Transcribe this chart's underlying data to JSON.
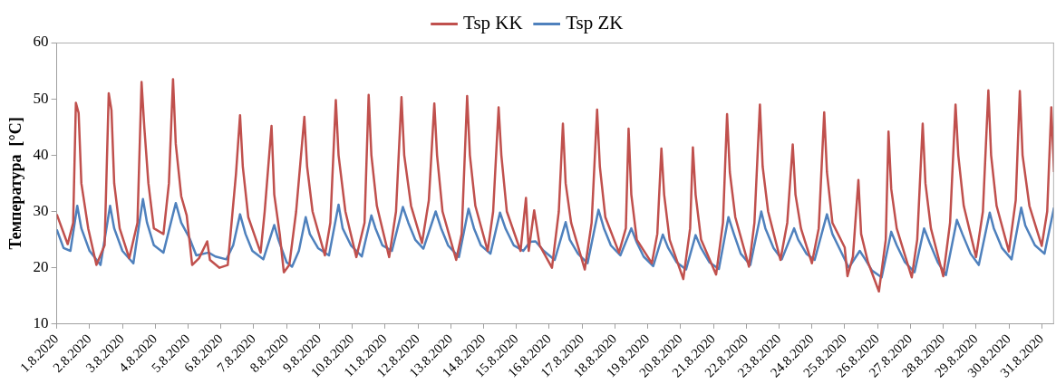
{
  "chart_data": {
    "type": "line",
    "ylabel": "Температура  [°C]",
    "ylim": [
      10,
      60
    ],
    "yticks": [
      10,
      20,
      30,
      40,
      50,
      60
    ],
    "xlim": [
      "2020-08-01T00:00",
      "2020-08-31T09:00"
    ],
    "xticks": [
      {
        "value": "2020-08-01",
        "label": "1.8.2020"
      },
      {
        "value": "2020-08-02",
        "label": "2.8.2020"
      },
      {
        "value": "2020-08-03",
        "label": "3.8.2020"
      },
      {
        "value": "2020-08-04",
        "label": "4.8.2020"
      },
      {
        "value": "2020-08-05",
        "label": "5.8.2020"
      },
      {
        "value": "2020-08-06",
        "label": "6.8.2020"
      },
      {
        "value": "2020-08-07",
        "label": "7.8.2020"
      },
      {
        "value": "2020-08-08",
        "label": "8.8.2020"
      },
      {
        "value": "2020-08-09",
        "label": "9.8.2020"
      },
      {
        "value": "2020-08-10",
        "label": "10.8.2020"
      },
      {
        "value": "2020-08-11",
        "label": "11.8.2020"
      },
      {
        "value": "2020-08-12",
        "label": "12.8.2020"
      },
      {
        "value": "2020-08-13",
        "label": "13.8.2020"
      },
      {
        "value": "2020-08-14",
        "label": "14.8.2020"
      },
      {
        "value": "2020-08-15",
        "label": "15.8.2020"
      },
      {
        "value": "2020-08-16",
        "label": "16.8.2020"
      },
      {
        "value": "2020-08-17",
        "label": "17.8.2020"
      },
      {
        "value": "2020-08-18",
        "label": "18.8.2020"
      },
      {
        "value": "2020-08-19",
        "label": "19.8.2020"
      },
      {
        "value": "2020-08-20",
        "label": "20.8.2020"
      },
      {
        "value": "2020-08-21",
        "label": "21.8.2020"
      },
      {
        "value": "2020-08-22",
        "label": "22.8.2020"
      },
      {
        "value": "2020-08-23",
        "label": "23.8.2020"
      },
      {
        "value": "2020-08-24",
        "label": "24.8.2020"
      },
      {
        "value": "2020-08-25",
        "label": "25.8.2020"
      },
      {
        "value": "2020-08-26",
        "label": "26.8.2020"
      },
      {
        "value": "2020-08-27",
        "label": "27.8.2020"
      },
      {
        "value": "2020-08-28",
        "label": "28.8.2020"
      },
      {
        "value": "2020-08-29",
        "label": "29.8.2020"
      },
      {
        "value": "2020-08-30",
        "label": "30.8.2020"
      },
      {
        "value": "2020-08-31",
        "label": "31.8.2020"
      }
    ],
    "grid": false,
    "legend": "top",
    "marker": "none",
    "series": [
      {
        "name": "Tsp KK",
        "color": "#c0504d",
        "x": [
          "2020-08-01T00:00",
          "2020-08-01T08:00",
          "2020-08-01T12:00",
          "2020-08-01T14:00",
          "2020-08-01T16:00",
          "2020-08-01T18:00",
          "2020-08-01T23:00",
          "2020-08-02T05:00",
          "2020-08-02T11:00",
          "2020-08-02T14:00",
          "2020-08-02T16:00",
          "2020-08-02T18:00",
          "2020-08-02T22:00",
          "2020-08-03T05:00",
          "2020-08-03T11:00",
          "2020-08-03T14:00",
          "2020-08-03T16:00",
          "2020-08-03T19:00",
          "2020-08-03T23:00",
          "2020-08-04T06:00",
          "2020-08-04T10:00",
          "2020-08-04T13:00",
          "2020-08-04T15:00",
          "2020-08-04T19:00",
          "2020-08-04T23:00",
          "2020-08-05T03:00",
          "2020-08-05T08:00",
          "2020-08-05T14:00",
          "2020-08-05T16:00",
          "2020-08-05T23:00",
          "2020-08-06T05:00",
          "2020-08-06T11:00",
          "2020-08-06T14:00",
          "2020-08-06T16:00",
          "2020-08-06T20:00",
          "2020-08-07T05:00",
          "2020-08-07T08:00",
          "2020-08-07T13:00",
          "2020-08-07T15:00",
          "2020-08-07T19:00",
          "2020-08-07T22:00",
          "2020-08-08T02:00",
          "2020-08-08T07:00",
          "2020-08-08T13:00",
          "2020-08-08T15:00",
          "2020-08-08T19:00",
          "2020-08-09T04:00",
          "2020-08-09T08:00",
          "2020-08-09T12:00",
          "2020-08-09T14:00",
          "2020-08-09T19:00",
          "2020-08-10T03:00",
          "2020-08-10T09:00",
          "2020-08-10T12:00",
          "2020-08-10T14:00",
          "2020-08-10T18:00",
          "2020-08-11T03:00",
          "2020-08-11T08:00",
          "2020-08-11T12:00",
          "2020-08-11T14:00",
          "2020-08-11T19:00",
          "2020-08-12T03:00",
          "2020-08-12T08:00",
          "2020-08-12T12:00",
          "2020-08-12T14:00",
          "2020-08-12T18:00",
          "2020-08-13T04:00",
          "2020-08-13T08:00",
          "2020-08-13T12:00",
          "2020-08-13T14:00",
          "2020-08-13T18:00",
          "2020-08-14T03:00",
          "2020-08-14T07:00",
          "2020-08-14T11:00",
          "2020-08-14T13:00",
          "2020-08-14T17:00",
          "2020-08-15T03:00",
          "2020-08-15T07:00",
          "2020-08-15T09:00",
          "2020-08-15T13:00",
          "2020-08-15T17:00",
          "2020-08-16T02:00",
          "2020-08-16T07:00",
          "2020-08-16T10:00",
          "2020-08-16T12:00",
          "2020-08-16T16:00",
          "2020-08-17T02:00",
          "2020-08-17T07:00",
          "2020-08-17T11:00",
          "2020-08-17T13:00",
          "2020-08-17T17:00",
          "2020-08-18T03:00",
          "2020-08-18T08:00",
          "2020-08-18T10:00",
          "2020-08-18T12:00",
          "2020-08-18T16:00",
          "2020-08-19T03:00",
          "2020-08-19T07:00",
          "2020-08-19T10:00",
          "2020-08-19T12:00",
          "2020-08-19T16:00",
          "2020-08-20T02:00",
          "2020-08-20T07:00",
          "2020-08-20T09:00",
          "2020-08-20T11:00",
          "2020-08-20T15:00",
          "2020-08-21T02:00",
          "2020-08-21T07:00",
          "2020-08-21T10:00",
          "2020-08-21T12:00",
          "2020-08-21T16:00",
          "2020-08-22T02:00",
          "2020-08-22T06:00",
          "2020-08-22T10:00",
          "2020-08-22T12:00",
          "2020-08-22T16:00",
          "2020-08-23T01:00",
          "2020-08-23T06:00",
          "2020-08-23T10:00",
          "2020-08-23T12:00",
          "2020-08-23T16:00",
          "2020-08-24T00:00",
          "2020-08-24T05:00",
          "2020-08-24T09:00",
          "2020-08-24T11:00",
          "2020-08-24T15:00",
          "2020-08-25T00:00",
          "2020-08-25T02:00",
          "2020-08-25T06:00",
          "2020-08-25T10:00",
          "2020-08-25T12:00",
          "2020-08-25T17:00",
          "2020-08-26T01:00",
          "2020-08-26T06:00",
          "2020-08-26T08:00",
          "2020-08-26T10:00",
          "2020-08-26T14:00",
          "2020-08-27T01:00",
          "2020-08-27T05:00",
          "2020-08-27T09:00",
          "2020-08-27T11:00",
          "2020-08-27T15:00",
          "2020-08-28T00:00",
          "2020-08-28T05:00",
          "2020-08-28T09:00",
          "2020-08-28T11:00",
          "2020-08-28T15:00",
          "2020-08-29T00:00",
          "2020-08-29T05:00",
          "2020-08-29T09:00",
          "2020-08-29T11:00",
          "2020-08-29T15:00",
          "2020-08-30T00:00",
          "2020-08-30T05:00",
          "2020-08-30T08:00",
          "2020-08-30T10:00",
          "2020-08-30T15:00",
          "2020-08-31T00:00",
          "2020-08-31T04:00",
          "2020-08-31T07:00",
          "2020-08-31T09:00"
        ],
        "values": [
          29.5,
          24.2,
          28,
          49.3,
          47.5,
          35,
          27,
          20.5,
          24,
          51,
          48,
          35,
          27,
          21.7,
          28,
          53,
          45,
          35,
          27,
          26,
          35,
          53.5,
          42,
          32.7,
          29.3,
          20.5,
          21.7,
          24.7,
          21.4,
          20,
          20.5,
          36.6,
          47.1,
          38,
          29,
          22.7,
          30,
          45.2,
          33,
          26,
          19.2,
          20.5,
          30,
          46.8,
          38,
          30,
          22.2,
          28,
          49.8,
          40,
          30,
          21.9,
          28,
          50.7,
          40,
          31,
          21.9,
          30,
          50.3,
          40,
          31,
          24.4,
          32,
          49.2,
          40,
          30,
          21.4,
          26,
          50.5,
          40,
          31,
          23,
          30,
          48.5,
          40,
          30,
          23,
          32.4,
          23,
          30.2,
          24,
          20,
          30,
          45.6,
          35,
          28,
          19.7,
          28,
          48.1,
          38,
          29,
          22.7,
          27,
          44.7,
          33,
          25,
          20.8,
          26,
          41.2,
          33,
          25,
          18,
          27,
          41.4,
          33,
          25,
          18.8,
          28,
          47.3,
          37,
          29,
          20.2,
          28,
          49,
          38,
          30,
          21.4,
          28,
          41.9,
          33,
          27,
          20.8,
          27,
          47.6,
          37,
          28,
          23.6,
          18.5,
          22,
          35.6,
          26,
          21,
          15.8,
          25,
          44.2,
          34,
          27,
          18.3,
          25,
          45.6,
          35,
          27,
          18.5,
          28,
          49,
          40,
          31,
          21.9,
          30,
          51.5,
          40,
          31,
          22.9,
          32,
          51.4,
          40,
          31,
          23.9,
          30,
          48.5,
          37
        ]
      },
      {
        "name": "Tsp ZK",
        "color": "#4f81bd",
        "x": [
          "2020-08-01T00:00",
          "2020-08-01T05:00",
          "2020-08-01T10:00",
          "2020-08-01T15:00",
          "2020-08-01T18:00",
          "2020-08-02T00:00",
          "2020-08-02T08:00",
          "2020-08-02T15:00",
          "2020-08-02T18:00",
          "2020-08-03T00:00",
          "2020-08-03T08:00",
          "2020-08-03T15:00",
          "2020-08-03T18:00",
          "2020-08-03T23:00",
          "2020-08-04T06:00",
          "2020-08-04T15:00",
          "2020-08-04T19:00",
          "2020-08-05T01:00",
          "2020-08-05T06:00",
          "2020-08-05T15:00",
          "2020-08-05T20:00",
          "2020-08-06T04:00",
          "2020-08-06T09:00",
          "2020-08-06T14:00",
          "2020-08-06T18:00",
          "2020-08-06T23:00",
          "2020-08-07T07:00",
          "2020-08-07T15:00",
          "2020-08-07T18:00",
          "2020-08-08T00:00",
          "2020-08-08T04:00",
          "2020-08-08T09:00",
          "2020-08-08T14:00",
          "2020-08-08T17:00",
          "2020-08-08T23:00",
          "2020-08-09T07:00",
          "2020-08-09T14:00",
          "2020-08-09T17:00",
          "2020-08-09T23:00",
          "2020-08-10T07:00",
          "2020-08-10T14:00",
          "2020-08-10T17:00",
          "2020-08-10T22:00",
          "2020-08-11T05:00",
          "2020-08-11T13:00",
          "2020-08-11T17:00",
          "2020-08-11T22:00",
          "2020-08-12T04:00",
          "2020-08-12T13:00",
          "2020-08-12T17:00",
          "2020-08-12T22:00",
          "2020-08-13T06:00",
          "2020-08-13T13:00",
          "2020-08-13T17:00",
          "2020-08-13T22:00",
          "2020-08-14T05:00",
          "2020-08-14T12:00",
          "2020-08-14T16:00",
          "2020-08-14T22:00",
          "2020-08-15T05:00",
          "2020-08-15T10:00",
          "2020-08-15T14:00",
          "2020-08-15T20:00",
          "2020-08-16T04:00",
          "2020-08-16T12:00",
          "2020-08-16T15:00",
          "2020-08-16T21:00",
          "2020-08-17T04:00",
          "2020-08-17T12:00",
          "2020-08-17T16:00",
          "2020-08-17T21:00",
          "2020-08-18T04:00",
          "2020-08-18T12:00",
          "2020-08-18T16:00",
          "2020-08-18T21:00",
          "2020-08-19T04:00",
          "2020-08-19T11:00",
          "2020-08-19T15:00",
          "2020-08-19T21:00",
          "2020-08-20T04:00",
          "2020-08-20T11:00",
          "2020-08-20T15:00",
          "2020-08-20T21:00",
          "2020-08-21T04:00",
          "2020-08-21T11:00",
          "2020-08-21T15:00",
          "2020-08-21T20:00",
          "2020-08-22T03:00",
          "2020-08-22T11:00",
          "2020-08-22T14:00",
          "2020-08-22T20:00",
          "2020-08-23T02:00",
          "2020-08-23T11:00",
          "2020-08-23T14:00",
          "2020-08-23T20:00",
          "2020-08-24T02:00",
          "2020-08-24T11:00",
          "2020-08-24T15:00",
          "2020-08-24T21:00",
          "2020-08-25T03:00",
          "2020-08-25T11:00",
          "2020-08-25T15:00",
          "2020-08-25T20:00",
          "2020-08-26T03:00",
          "2020-08-26T10:00",
          "2020-08-26T14:00",
          "2020-08-26T20:00",
          "2020-08-27T03:00",
          "2020-08-27T10:00",
          "2020-08-27T14:00",
          "2020-08-27T20:00",
          "2020-08-28T02:00",
          "2020-08-28T10:00",
          "2020-08-28T14:00",
          "2020-08-28T20:00",
          "2020-08-29T02:00",
          "2020-08-29T10:00",
          "2020-08-29T13:00",
          "2020-08-29T19:00",
          "2020-08-30T02:00",
          "2020-08-30T09:00",
          "2020-08-30T12:00",
          "2020-08-30T19:00",
          "2020-08-31T02:00",
          "2020-08-31T09:00"
        ],
        "values": [
          26.8,
          23.5,
          23,
          31,
          27,
          23,
          20.5,
          31,
          27,
          23,
          20.8,
          32.2,
          28,
          24,
          22.7,
          31.5,
          28,
          25.3,
          22.2,
          22.7,
          22,
          21.5,
          24,
          29.5,
          26,
          23,
          21.5,
          27.6,
          25,
          21,
          20.2,
          23,
          29,
          26,
          23.5,
          22.2,
          31.2,
          27,
          24,
          22,
          29.3,
          27,
          24,
          23,
          30.8,
          28,
          25,
          23.4,
          30,
          27,
          24,
          21.9,
          30.5,
          27,
          24,
          22.5,
          29.8,
          27,
          24,
          23,
          24.6,
          24.7,
          23,
          21.4,
          28.1,
          25,
          22.5,
          20.8,
          30.3,
          27,
          24,
          22.2,
          27,
          24.5,
          22,
          20.3,
          25.9,
          23.5,
          21,
          19.7,
          25.8,
          23.5,
          21,
          19.8,
          29,
          26,
          22.5,
          20.5,
          30,
          27,
          23.5,
          21.5,
          27,
          25,
          22.5,
          21.4,
          29.5,
          26,
          23,
          20,
          23,
          21.5,
          19.5,
          18.3,
          26.4,
          24,
          21,
          19.2,
          27,
          24.5,
          21,
          18.7,
          28.5,
          26,
          22.5,
          20.5,
          29.8,
          27,
          23.5,
          21.5,
          30.7,
          27.5,
          24,
          22.5,
          30.7
        ]
      }
    ]
  }
}
